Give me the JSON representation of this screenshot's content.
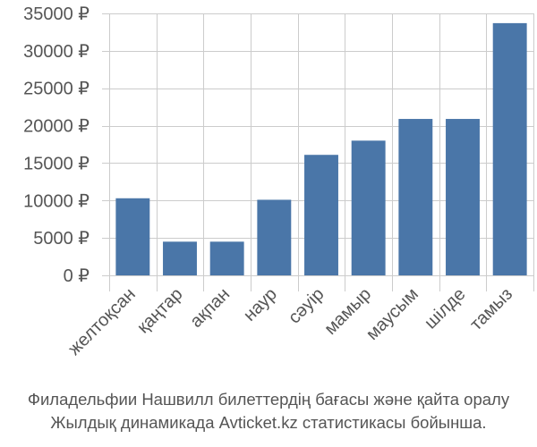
{
  "caption": {
    "line1": "Филадельфии Нашвилл билеттердің бағасы және қайта оралу",
    "line2": "Жылдық динамикада Avticket.kz статистикасы бойынша."
  },
  "colors": {
    "bar": "#4a76a8",
    "grid": "#cccccc",
    "text": "#555555"
  },
  "chart_data": {
    "type": "bar",
    "categories": [
      "желтоқсан",
      "қаңтар",
      "ақпан",
      "наур",
      "сәуір",
      "мамыр",
      "маусым",
      "шілде",
      "тамыз"
    ],
    "values": [
      10300,
      4500,
      4500,
      10100,
      16100,
      18000,
      20900,
      20900,
      33700
    ],
    "ylim": [
      0,
      35000
    ],
    "yticks": [
      0,
      5000,
      10000,
      15000,
      20000,
      25000,
      30000,
      35000
    ],
    "ytick_labels": [
      "0 ₽",
      "5000 ₽",
      "10000 ₽",
      "15000 ₽",
      "20000 ₽",
      "25000 ₽",
      "30000 ₽",
      "35000 ₽"
    ],
    "grid": true
  }
}
